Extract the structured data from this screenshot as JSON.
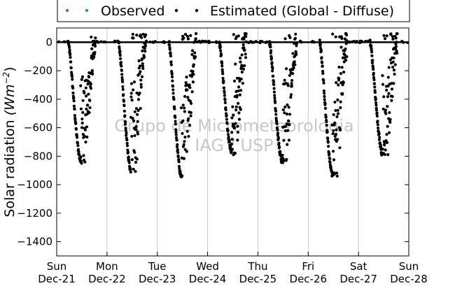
{
  "chart_data": {
    "type": "scatter",
    "ylabel": "Solar radiation",
    "ylabel_unit": "(Wm^-2)",
    "ylim": [
      -1500,
      100
    ],
    "yticks": [
      0,
      -200,
      -400,
      -600,
      -800,
      -1000,
      -1200,
      -1400
    ],
    "xticks": [
      {
        "day": "Sun",
        "date": "Dec-21"
      },
      {
        "day": "Mon",
        "date": "Dec-22"
      },
      {
        "day": "Tue",
        "date": "Dec-23"
      },
      {
        "day": "Wed",
        "date": "Dec-24"
      },
      {
        "day": "Thu",
        "date": "Dec-25"
      },
      {
        "day": "Fri",
        "date": "Dec-26"
      },
      {
        "day": "Sat",
        "date": "Dec-27"
      },
      {
        "day": "Sun",
        "date": "Dec-28"
      }
    ],
    "grid": "vertical",
    "legend_position": "top",
    "watermark": [
      "Grupo de Micrometeorologia",
      "IAG / USP"
    ],
    "series": [
      {
        "name": "Observed",
        "color": "#2ca02c",
        "marker": "dot",
        "values": []
      },
      {
        "name": "Estimated (Global - Diffuse)",
        "color": "#000000",
        "marker": "dot",
        "daily_cycles": [
          {
            "day": "Dec-21",
            "min": -850,
            "sunrise": 0.23,
            "sunset": 0.77,
            "noise": 150
          },
          {
            "day": "Dec-22",
            "min": -920,
            "sunrise": 0.23,
            "sunset": 0.77,
            "noise": 130
          },
          {
            "day": "Dec-23",
            "min": -960,
            "sunrise": 0.23,
            "sunset": 0.77,
            "noise": 200
          },
          {
            "day": "Dec-24",
            "min": -790,
            "sunrise": 0.23,
            "sunset": 0.77,
            "noise": 210
          },
          {
            "day": "Dec-25",
            "min": -850,
            "sunrise": 0.23,
            "sunset": 0.77,
            "noise": 200
          },
          {
            "day": "Dec-26",
            "min": -940,
            "sunrise": 0.23,
            "sunset": 0.77,
            "noise": 260
          },
          {
            "day": "Dec-27",
            "min": -810,
            "sunrise": 0.23,
            "sunset": 0.77,
            "noise": 180
          }
        ]
      }
    ]
  }
}
